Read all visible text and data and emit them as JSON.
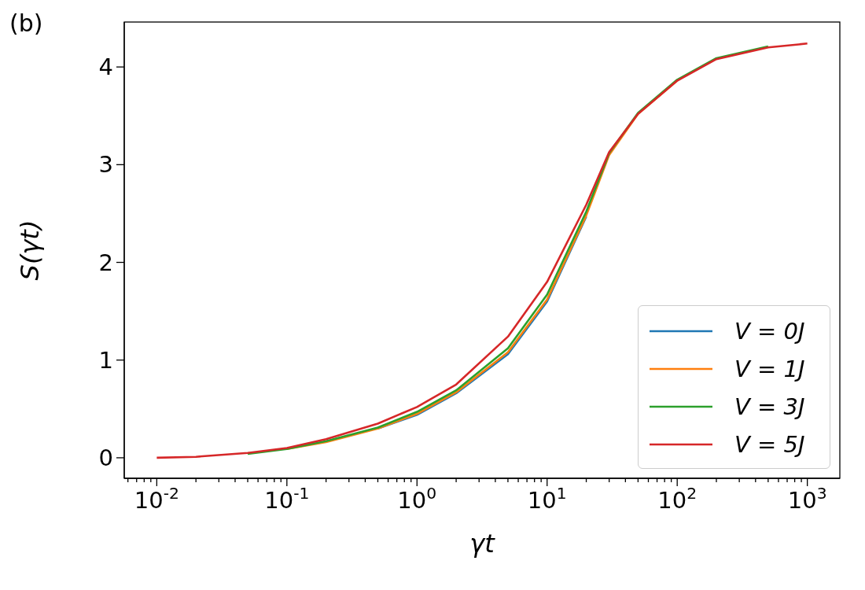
{
  "chart_data": {
    "type": "line",
    "xlabel": "γt",
    "ylabel": "S(γt)",
    "annotations": [
      "(b)"
    ],
    "log": "x",
    "grid": false,
    "legend": "bottom right",
    "marker": "none",
    "line_style": "solid",
    "x": [
      0.01,
      0.02,
      0.05,
      0.1,
      0.2,
      0.5,
      1,
      2,
      5,
      10,
      20,
      30,
      50,
      100,
      200,
      500,
      1000
    ],
    "series": [
      {
        "name": "V = 0J",
        "color": "#1f77b4",
        "values": [
          null,
          null,
          null,
          null,
          null,
          0.3,
          0.44,
          0.66,
          1.06,
          1.6,
          2.47,
          null,
          null,
          null,
          null,
          null,
          null
        ]
      },
      {
        "name": "V = 1J",
        "color": "#ff7f0e",
        "values": [
          null,
          null,
          null,
          0.09,
          0.16,
          0.3,
          0.45,
          0.67,
          1.08,
          1.62,
          2.48,
          3.1,
          3.52,
          3.86,
          null,
          null,
          null
        ]
      },
      {
        "name": "V = 3J",
        "color": "#2ca02c",
        "values": [
          null,
          null,
          0.04,
          0.09,
          0.17,
          0.31,
          0.47,
          0.69,
          1.12,
          1.67,
          2.52,
          3.12,
          3.53,
          3.87,
          4.09,
          4.21,
          null
        ]
      },
      {
        "name": "V = 5J",
        "color": "#d62728",
        "values": [
          0,
          0.01,
          0.05,
          0.1,
          0.19,
          0.35,
          0.52,
          0.75,
          1.24,
          1.8,
          2.59,
          3.13,
          3.52,
          3.86,
          4.08,
          4.2,
          4.24
        ]
      }
    ],
    "xlim": [
      0.005623,
      1778
    ],
    "xticks": [
      {
        "value": 0.01,
        "label": "10$^{-2}$"
      },
      {
        "value": 0.1,
        "label": "10$^{-1}$"
      },
      {
        "value": 1,
        "label": "10$^{0}$"
      },
      {
        "value": 10,
        "label": "10$^{1}$"
      },
      {
        "value": 100,
        "label": "10$^{2}$"
      },
      {
        "value": 1000,
        "label": "10$^{3}$"
      },
      {
        "value": 0.006,
        "label": null
      },
      {
        "value": 0.007,
        "label": null
      },
      {
        "value": 0.008,
        "label": null
      },
      {
        "value": 0.009,
        "label": null
      },
      {
        "value": 0.02,
        "label": null
      },
      {
        "value": 0.03,
        "label": null
      },
      {
        "value": 0.04,
        "label": null
      },
      {
        "value": 0.05,
        "label": null
      },
      {
        "value": 0.06,
        "label": null
      },
      {
        "value": 0.07,
        "label": null
      },
      {
        "value": 0.08,
        "label": null
      },
      {
        "value": 0.09,
        "label": null
      },
      {
        "value": 0.2,
        "label": null
      },
      {
        "value": 0.3,
        "label": null
      },
      {
        "value": 0.4,
        "label": null
      },
      {
        "value": 0.5,
        "label": null
      },
      {
        "value": 0.6,
        "label": null
      },
      {
        "value": 0.7,
        "label": null
      },
      {
        "value": 0.8,
        "label": null
      },
      {
        "value": 0.9,
        "label": null
      },
      {
        "value": 2,
        "label": null
      },
      {
        "value": 3,
        "label": null
      },
      {
        "value": 4,
        "label": null
      },
      {
        "value": 5,
        "label": null
      },
      {
        "value": 6,
        "label": null
      },
      {
        "value": 7,
        "label": null
      },
      {
        "value": 8,
        "label": null
      },
      {
        "value": 9,
        "label": null
      },
      {
        "value": 20,
        "label": null
      },
      {
        "value": 30,
        "label": null
      },
      {
        "value": 40,
        "label": null
      },
      {
        "value": 50,
        "label": null
      },
      {
        "value": 60,
        "label": null
      },
      {
        "value": 70,
        "label": null
      },
      {
        "value": 80,
        "label": null
      },
      {
        "value": 90,
        "label": null
      },
      {
        "value": 200,
        "label": null
      },
      {
        "value": 300,
        "label": null
      },
      {
        "value": 400,
        "label": null
      },
      {
        "value": 500,
        "label": null
      },
      {
        "value": 600,
        "label": null
      },
      {
        "value": 700,
        "label": null
      },
      {
        "value": 800,
        "label": null
      },
      {
        "value": 900,
        "label": null
      }
    ],
    "ylim": [
      -0.21,
      4.46
    ],
    "yticks": [
      0,
      1,
      2,
      3,
      4
    ]
  }
}
